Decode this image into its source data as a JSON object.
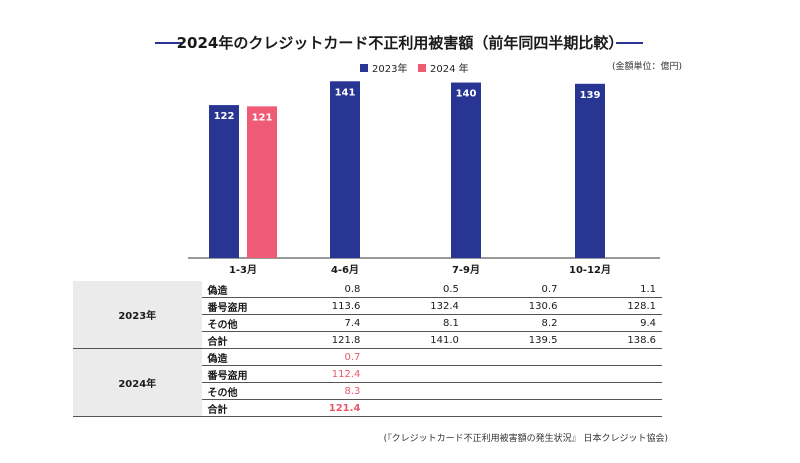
{
  "title": "2024年のクレジットカード不正利用被害額（前年同四半期比較）",
  "unit_note": "(金額単位：億円)",
  "legend": [
    {
      "label": "2023年",
      "color": "#283593"
    },
    {
      "label": "2024 年",
      "color": "#ef5b74"
    }
  ],
  "chart_data": {
    "type": "bar",
    "categories": [
      "1-3月",
      "4-6月",
      "7-9月",
      "10-12月"
    ],
    "series": [
      {
        "name": "2023年",
        "color": "#283593",
        "values": [
          122,
          141,
          140,
          139
        ]
      },
      {
        "name": "2024 年",
        "color": "#ef5b74",
        "values": [
          121,
          null,
          null,
          null
        ]
      }
    ],
    "ylim": [
      0,
      150
    ],
    "grid": false,
    "legend_position": "top-center"
  },
  "table": {
    "groups": [
      {
        "year": "2023年",
        "rows": [
          {
            "label": "偽造",
            "values": [
              "0.8",
              "0.5",
              "0.7",
              "1.1"
            ]
          },
          {
            "label": "番号盗用",
            "values": [
              "113.6",
              "132.4",
              "130.6",
              "128.1"
            ]
          },
          {
            "label": "その他",
            "values": [
              "7.4",
              "8.1",
              "8.2",
              "9.4"
            ]
          },
          {
            "label": "合計",
            "values": [
              "121.8",
              "141.0",
              "139.5",
              "138.6"
            ]
          }
        ]
      },
      {
        "year": "2024年",
        "rows": [
          {
            "label": "偽造",
            "values": [
              "0.7",
              "",
              "",
              ""
            ]
          },
          {
            "label": "番号盗用",
            "values": [
              "112.4",
              "",
              "",
              ""
            ]
          },
          {
            "label": "その他",
            "values": [
              "8.3",
              "",
              "",
              ""
            ]
          },
          {
            "label": "合計",
            "values": [
              "121.4",
              "",
              "",
              ""
            ]
          }
        ]
      }
    ]
  },
  "source": "(『クレジットカード不正利用被害額の発生状況』 日本クレジット協会)"
}
